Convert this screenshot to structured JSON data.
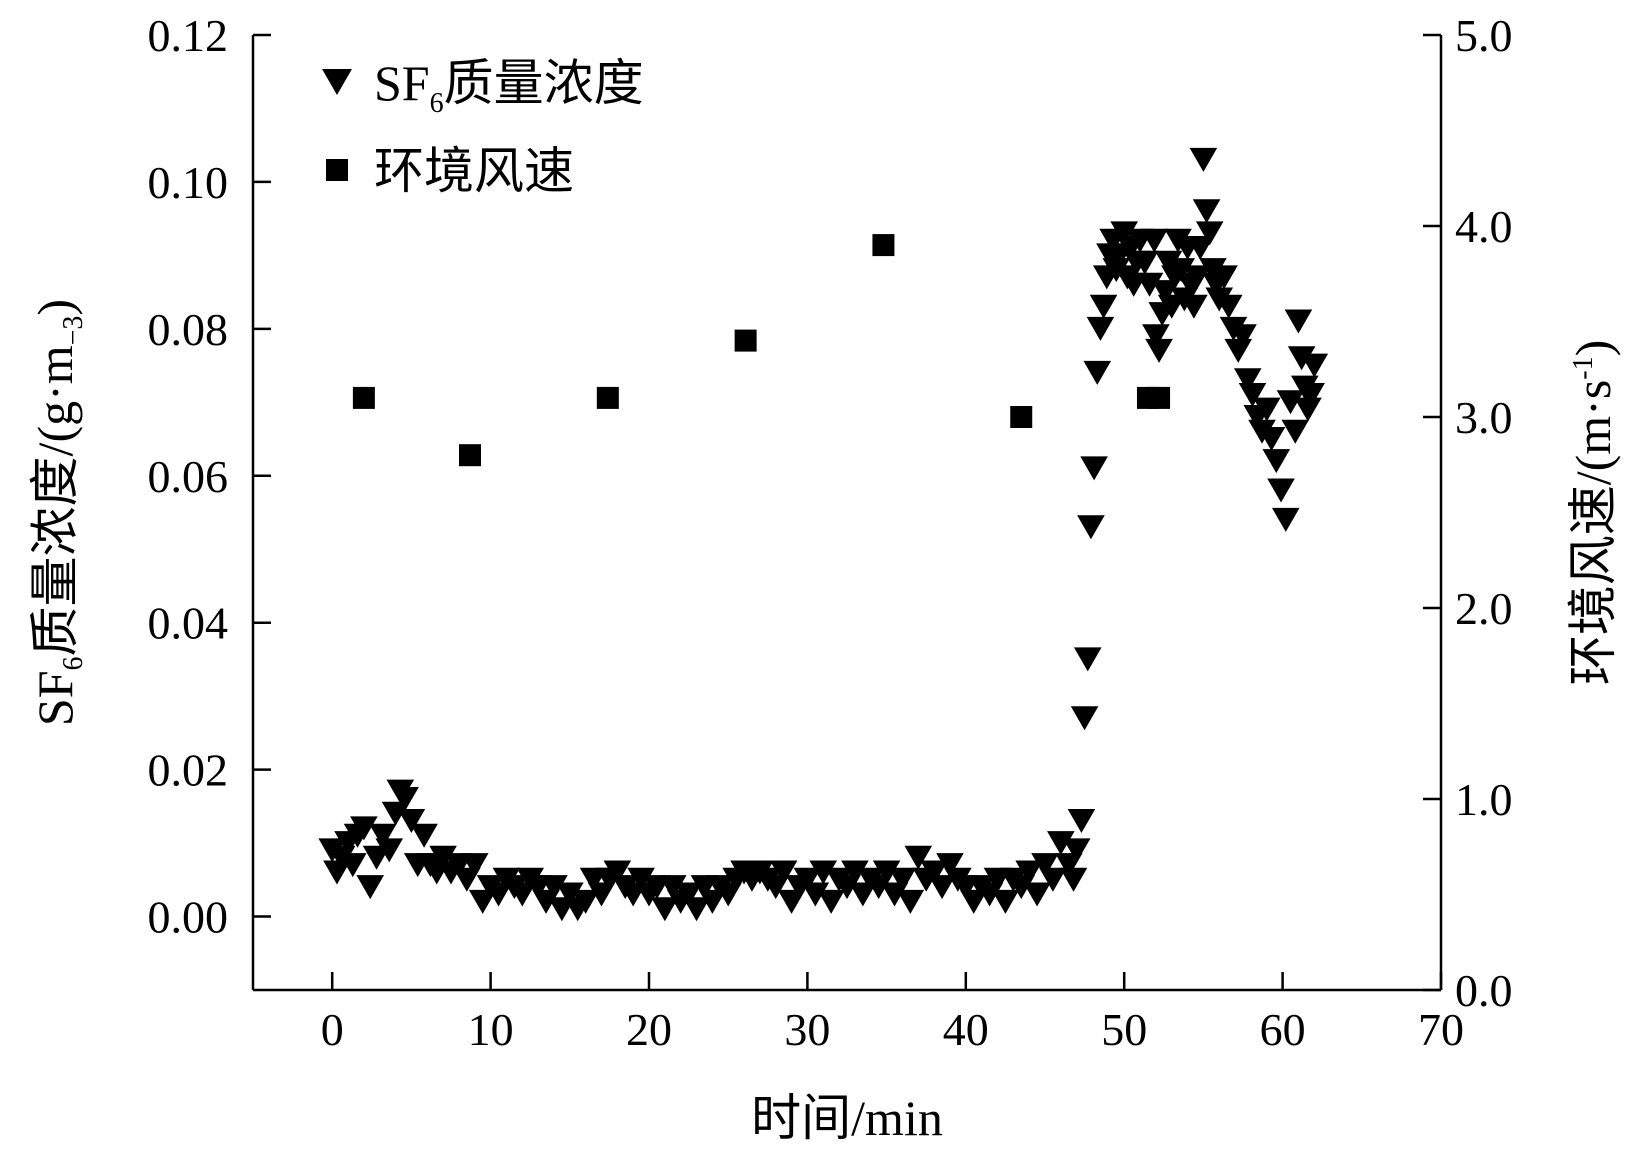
{
  "chart_data": {
    "type": "scatter",
    "xlabel": "时间/min",
    "y_left": {
      "label_parts": [
        "SF",
        "6",
        "质量浓度/(g·m",
        "−3",
        ")"
      ],
      "range": [
        -0.01,
        0.12
      ],
      "ticks": [
        "0.00",
        "0.02",
        "0.04",
        "0.06",
        "0.08",
        "0.10",
        "0.12"
      ]
    },
    "y_right": {
      "label_parts": [
        "环境风速/(m·s",
        "-1",
        ")"
      ],
      "range": [
        0,
        5
      ],
      "ticks": [
        "0.0",
        "1.0",
        "2.0",
        "3.0",
        "4.0",
        "5.0"
      ]
    },
    "x_range": [
      -5,
      70
    ],
    "x_ticks": [
      "0",
      "10",
      "20",
      "30",
      "40",
      "50",
      "60",
      "70"
    ],
    "legend": {
      "position": "top-left",
      "entries": [
        {
          "marker": "triangle-down",
          "parts": [
            "SF",
            "6",
            "质量浓度"
          ]
        },
        {
          "marker": "square",
          "parts": [
            "环境风速"
          ]
        }
      ]
    },
    "series": [
      {
        "marker": "triangle-down",
        "axis": "left",
        "color": "#000000",
        "points": [
          [
            0,
            0.009
          ],
          [
            0.3,
            0.006
          ],
          [
            0.6,
            0.008
          ],
          [
            1.0,
            0.01
          ],
          [
            1.3,
            0.007
          ],
          [
            1.6,
            0.011
          ],
          [
            2.0,
            0.012
          ],
          [
            2.4,
            0.004
          ],
          [
            2.8,
            0.008
          ],
          [
            3.2,
            0.011
          ],
          [
            3.6,
            0.009
          ],
          [
            4.0,
            0.014
          ],
          [
            4.3,
            0.017
          ],
          [
            4.6,
            0.016
          ],
          [
            5.0,
            0.013
          ],
          [
            5.4,
            0.007
          ],
          [
            5.8,
            0.011
          ],
          [
            6.2,
            0.007
          ],
          [
            6.6,
            0.006
          ],
          [
            7.0,
            0.008
          ],
          [
            7.5,
            0.006
          ],
          [
            8.0,
            0.007
          ],
          [
            8.5,
            0.005
          ],
          [
            9.0,
            0.007
          ],
          [
            9.5,
            0.002
          ],
          [
            10.0,
            0.004
          ],
          [
            10.5,
            0.003
          ],
          [
            11.0,
            0.005
          ],
          [
            11.5,
            0.004
          ],
          [
            12.0,
            0.003
          ],
          [
            12.5,
            0.005
          ],
          [
            13.0,
            0.004
          ],
          [
            13.5,
            0.002
          ],
          [
            14.0,
            0.004
          ],
          [
            14.5,
            0.001
          ],
          [
            15.0,
            0.003
          ],
          [
            15.5,
            0.001
          ],
          [
            16.0,
            0.002
          ],
          [
            16.5,
            0.005
          ],
          [
            17.0,
            0.003
          ],
          [
            17.5,
            0.005
          ],
          [
            18.0,
            0.006
          ],
          [
            18.5,
            0.004
          ],
          [
            19.0,
            0.003
          ],
          [
            19.5,
            0.005
          ],
          [
            20.0,
            0.003
          ],
          [
            20.5,
            0.004
          ],
          [
            21.0,
            0.001
          ],
          [
            21.5,
            0.004
          ],
          [
            22.0,
            0.002
          ],
          [
            22.5,
            0.003
          ],
          [
            23.0,
            0.001
          ],
          [
            23.5,
            0.004
          ],
          [
            24.0,
            0.002
          ],
          [
            24.5,
            0.004
          ],
          [
            25.0,
            0.003
          ],
          [
            25.5,
            0.005
          ],
          [
            26.0,
            0.006
          ],
          [
            26.5,
            0.005
          ],
          [
            27.0,
            0.006
          ],
          [
            27.5,
            0.005
          ],
          [
            28.0,
            0.004
          ],
          [
            28.5,
            0.006
          ],
          [
            29.0,
            0.002
          ],
          [
            29.5,
            0.004
          ],
          [
            30.0,
            0.005
          ],
          [
            30.5,
            0.003
          ],
          [
            31.0,
            0.006
          ],
          [
            31.5,
            0.002
          ],
          [
            32.0,
            0.005
          ],
          [
            32.5,
            0.004
          ],
          [
            33.0,
            0.006
          ],
          [
            33.5,
            0.003
          ],
          [
            34.0,
            0.005
          ],
          [
            34.5,
            0.004
          ],
          [
            35.0,
            0.006
          ],
          [
            35.5,
            0.003
          ],
          [
            36.0,
            0.005
          ],
          [
            36.5,
            0.002
          ],
          [
            37.0,
            0.008
          ],
          [
            37.5,
            0.005
          ],
          [
            38.0,
            0.006
          ],
          [
            38.5,
            0.004
          ],
          [
            39.0,
            0.007
          ],
          [
            39.5,
            0.005
          ],
          [
            40.0,
            0.004
          ],
          [
            40.5,
            0.002
          ],
          [
            41.0,
            0.004
          ],
          [
            41.5,
            0.003
          ],
          [
            42.0,
            0.005
          ],
          [
            42.5,
            0.002
          ],
          [
            43.0,
            0.005
          ],
          [
            43.5,
            0.004
          ],
          [
            44.0,
            0.006
          ],
          [
            44.5,
            0.003
          ],
          [
            45.0,
            0.007
          ],
          [
            45.5,
            0.005
          ],
          [
            46.0,
            0.01
          ],
          [
            46.5,
            0.007
          ],
          [
            46.8,
            0.005
          ],
          [
            47.0,
            0.009
          ],
          [
            47.3,
            0.013
          ],
          [
            47.5,
            0.027
          ],
          [
            47.7,
            0.035
          ],
          [
            47.9,
            0.053
          ],
          [
            48.1,
            0.061
          ],
          [
            48.3,
            0.074
          ],
          [
            48.5,
            0.08
          ],
          [
            48.7,
            0.083
          ],
          [
            48.9,
            0.087
          ],
          [
            49.1,
            0.09
          ],
          [
            49.3,
            0.092
          ],
          [
            49.5,
            0.088
          ],
          [
            49.7,
            0.09
          ],
          [
            50.0,
            0.093
          ],
          [
            50.2,
            0.087
          ],
          [
            50.4,
            0.091
          ],
          [
            50.6,
            0.086
          ],
          [
            50.8,
            0.089
          ],
          [
            51.0,
            0.092
          ],
          [
            51.3,
            0.089
          ],
          [
            51.6,
            0.086
          ],
          [
            51.9,
            0.092
          ],
          [
            52.0,
            0.079
          ],
          [
            52.2,
            0.077
          ],
          [
            52.4,
            0.082
          ],
          [
            52.6,
            0.085
          ],
          [
            52.8,
            0.089
          ],
          [
            53.0,
            0.083
          ],
          [
            53.2,
            0.087
          ],
          [
            53.4,
            0.092
          ],
          [
            53.6,
            0.088
          ],
          [
            53.8,
            0.084
          ],
          [
            54.0,
            0.091
          ],
          [
            54.2,
            0.086
          ],
          [
            54.4,
            0.083
          ],
          [
            54.6,
            0.087
          ],
          [
            54.8,
            0.091
          ],
          [
            55.0,
            0.103
          ],
          [
            55.2,
            0.096
          ],
          [
            55.4,
            0.093
          ],
          [
            55.6,
            0.088
          ],
          [
            55.8,
            0.086
          ],
          [
            56.0,
            0.084
          ],
          [
            56.3,
            0.087
          ],
          [
            56.6,
            0.083
          ],
          [
            56.9,
            0.08
          ],
          [
            57.2,
            0.077
          ],
          [
            57.5,
            0.079
          ],
          [
            57.8,
            0.073
          ],
          [
            58.1,
            0.071
          ],
          [
            58.4,
            0.068
          ],
          [
            58.7,
            0.066
          ],
          [
            59.0,
            0.069
          ],
          [
            59.3,
            0.065
          ],
          [
            59.6,
            0.062
          ],
          [
            59.9,
            0.058
          ],
          [
            60.2,
            0.054
          ],
          [
            60.5,
            0.07
          ],
          [
            60.8,
            0.066
          ],
          [
            61.0,
            0.081
          ],
          [
            61.2,
            0.076
          ],
          [
            61.4,
            0.072
          ],
          [
            61.6,
            0.069
          ],
          [
            61.8,
            0.071
          ],
          [
            62.0,
            0.075
          ]
        ]
      },
      {
        "marker": "square",
        "axis": "right",
        "color": "#000000",
        "points": [
          [
            2,
            3.1
          ],
          [
            8.7,
            2.8
          ],
          [
            17.4,
            3.1
          ],
          [
            26.1,
            3.4
          ],
          [
            34.8,
            3.9
          ],
          [
            43.5,
            3.0
          ],
          [
            51.5,
            3.1
          ],
          [
            52.2,
            3.1
          ]
        ]
      }
    ]
  }
}
